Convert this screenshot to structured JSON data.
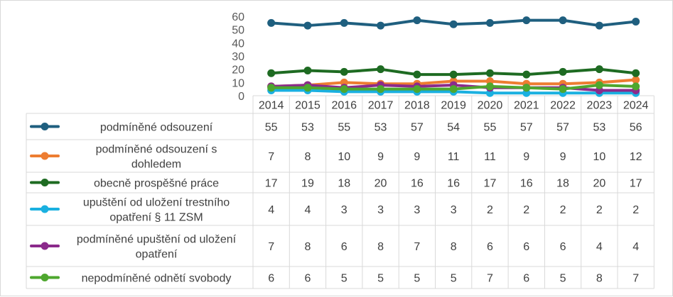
{
  "chart_data": {
    "type": "line",
    "title": "",
    "xlabel": "",
    "ylabel": "",
    "ylim": [
      0,
      60
    ],
    "yticks": [
      0,
      10,
      20,
      30,
      40,
      50,
      60
    ],
    "grid": false,
    "legend_placement": "data-table-left",
    "categories": [
      "2014",
      "2015",
      "2016",
      "2017",
      "2018",
      "2019",
      "2020",
      "2021",
      "2022",
      "2023",
      "2024"
    ],
    "series": [
      {
        "name": "podmíněné odsouzení",
        "name_lines": [
          "podmíněné odsouzení"
        ],
        "color": "#1f5f7f",
        "values": [
          55,
          53,
          55,
          53,
          57,
          54,
          55,
          57,
          57,
          53,
          56
        ]
      },
      {
        "name": "podmíněné odsouzení s dohledem",
        "name_lines": [
          "podmíněné odsouzení s",
          "dohledem"
        ],
        "color": "#ed7d31",
        "values": [
          7,
          8,
          10,
          9,
          9,
          11,
          11,
          9,
          9,
          10,
          12
        ]
      },
      {
        "name": "obecně prospěšné práce",
        "name_lines": [
          "obecně prospěšné práce"
        ],
        "color": "#1e6b22",
        "values": [
          17,
          19,
          18,
          20,
          16,
          16,
          17,
          16,
          18,
          20,
          17
        ]
      },
      {
        "name": "upuštění od uložení trestního opatření § 11 ZSM",
        "name_lines": [
          "upuštění od uložení trestního",
          "opatření § 11 ZSM"
        ],
        "color": "#1ab0e0",
        "values": [
          4,
          4,
          3,
          3,
          3,
          3,
          2,
          2,
          2,
          2,
          2
        ]
      },
      {
        "name": "podmíněné upuštění od uložení opatření",
        "name_lines": [
          "podmíněné upuštění od uložení",
          "opatření"
        ],
        "color": "#8b2a8b",
        "values": [
          7,
          8,
          6,
          8,
          7,
          8,
          6,
          6,
          6,
          4,
          4
        ]
      },
      {
        "name": "nepodmíněné odnětí svobody",
        "name_lines": [
          "nepodmíněné odnětí svobody"
        ],
        "color": "#4ea72e",
        "values": [
          6,
          6,
          5,
          5,
          5,
          5,
          7,
          6,
          5,
          8,
          7
        ]
      }
    ]
  }
}
